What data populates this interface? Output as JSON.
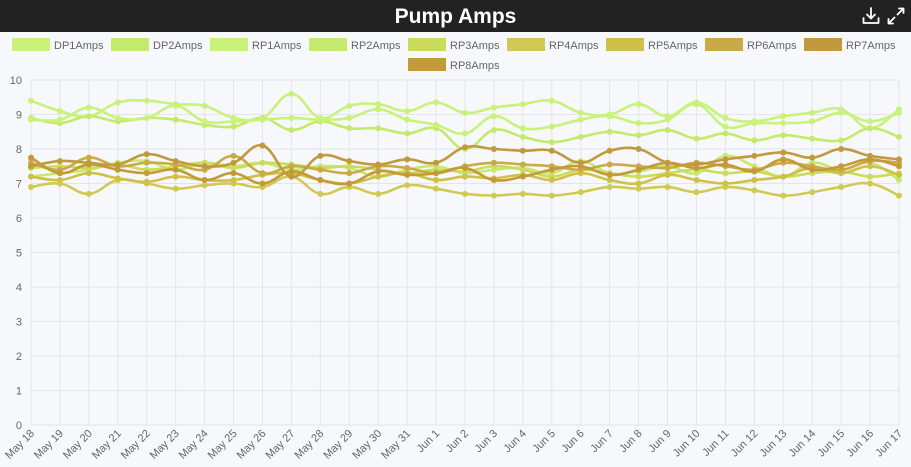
{
  "header": {
    "title": "Pump Amps",
    "download_icon": "download-icon",
    "expand_icon": "expand-icon"
  },
  "chart_data": {
    "type": "line",
    "title": "Pump Amps",
    "xlabel": "",
    "ylabel": "",
    "ylim": [
      0,
      10
    ],
    "yticks": [
      "0",
      "1",
      "2",
      "3",
      "4",
      "5",
      "6",
      "7",
      "8",
      "9",
      "10"
    ],
    "grid": true,
    "legend": "top",
    "categories": [
      "May 18",
      "May 19",
      "May 20",
      "May 21",
      "May 22",
      "May 23",
      "May 24",
      "May 25",
      "May 26",
      "May 27",
      "May 28",
      "May 29",
      "May 30",
      "May 31",
      "Jun 1",
      "Jun 2",
      "Jun 3",
      "Jun 4",
      "Jun 5",
      "Jun 6",
      "Jun 7",
      "Jun 8",
      "Jun 9",
      "Jun 10",
      "Jun 11",
      "Jun 12",
      "Jun 13",
      "Jun 14",
      "Jun 15",
      "Jun 16",
      "Jun 17"
    ],
    "series": [
      {
        "name": "DP1Amps",
        "color": "#c8f27a",
        "values": [
          9.4,
          9.1,
          8.95,
          9.35,
          9.4,
          9.3,
          9.25,
          8.9,
          8.9,
          9.6,
          8.9,
          9.25,
          9.3,
          9.1,
          9.35,
          9.05,
          9.2,
          9.3,
          9.4,
          9.05,
          9.0,
          9.3,
          8.95,
          9.35,
          8.9,
          8.8,
          8.95,
          9.05,
          9.15,
          8.6,
          9.15
        ]
      },
      {
        "name": "DP2Amps",
        "color": "#c4ea6c",
        "values": [
          8.9,
          8.75,
          8.95,
          8.8,
          8.9,
          8.85,
          8.7,
          8.65,
          8.9,
          8.55,
          8.8,
          8.6,
          8.6,
          8.45,
          8.6,
          8.0,
          8.55,
          8.35,
          8.2,
          8.35,
          8.5,
          8.4,
          8.55,
          8.3,
          8.45,
          8.25,
          8.4,
          8.3,
          8.25,
          8.6,
          8.35
        ]
      },
      {
        "name": "RP1Amps",
        "color": "#c8f27a",
        "values": [
          8.85,
          8.85,
          9.2,
          8.9,
          8.9,
          9.25,
          8.8,
          8.8,
          8.85,
          8.9,
          8.85,
          8.9,
          9.15,
          8.85,
          8.7,
          8.45,
          8.95,
          8.6,
          8.65,
          8.85,
          8.95,
          8.75,
          8.85,
          9.3,
          8.65,
          8.75,
          8.75,
          8.8,
          9.05,
          8.8,
          9.05
        ]
      },
      {
        "name": "RP2Amps",
        "color": "#c6ea70",
        "values": [
          7.2,
          7.3,
          7.4,
          7.6,
          7.65,
          7.4,
          7.6,
          7.5,
          7.6,
          7.4,
          7.5,
          7.45,
          7.2,
          7.4,
          7.5,
          7.3,
          7.4,
          7.45,
          7.3,
          7.65,
          7.3,
          7.35,
          7.5,
          7.3,
          7.8,
          7.5,
          7.2,
          7.6,
          7.4,
          7.6,
          7.1
        ]
      },
      {
        "name": "RP3Amps",
        "color": "#cadc5a",
        "values": [
          7.45,
          7.5,
          7.45,
          7.55,
          7.4,
          7.5,
          7.6,
          7.45,
          7.6,
          7.55,
          7.45,
          7.5,
          7.4,
          7.3,
          7.4,
          7.35,
          7.5,
          7.4,
          7.2,
          7.4,
          7.3,
          7.2,
          7.3,
          7.4,
          7.3,
          7.35,
          7.2,
          7.3,
          7.35,
          7.2,
          7.3
        ]
      },
      {
        "name": "RP4Amps",
        "color": "#d0ca55",
        "values": [
          6.9,
          7.0,
          6.7,
          7.1,
          7.0,
          6.85,
          6.95,
          7.0,
          6.9,
          7.2,
          6.7,
          6.9,
          6.7,
          6.95,
          6.85,
          6.7,
          6.65,
          6.7,
          6.65,
          6.75,
          6.9,
          6.85,
          6.9,
          6.75,
          6.9,
          6.8,
          6.65,
          6.75,
          6.9,
          7.0,
          6.65
        ]
      },
      {
        "name": "RP5Amps",
        "color": "#cfc048",
        "values": [
          7.2,
          7.1,
          7.3,
          7.15,
          7.05,
          7.2,
          7.1,
          7.1,
          7.25,
          7.3,
          7.1,
          7.0,
          7.2,
          7.3,
          7.1,
          7.2,
          7.15,
          7.25,
          7.1,
          7.3,
          7.1,
          7.0,
          7.25,
          7.1,
          7.0,
          7.1,
          7.2,
          7.45,
          7.3,
          7.5,
          7.25
        ]
      },
      {
        "name": "RP6Amps",
        "color": "#c9aa45",
        "values": [
          7.6,
          7.4,
          7.75,
          7.5,
          7.6,
          7.55,
          7.4,
          7.8,
          7.3,
          7.5,
          7.4,
          7.3,
          7.5,
          7.45,
          7.3,
          7.5,
          7.6,
          7.55,
          7.5,
          7.4,
          7.55,
          7.5,
          7.45,
          7.6,
          7.5,
          7.4,
          7.6,
          7.5,
          7.4,
          7.65,
          7.6
        ]
      },
      {
        "name": "RP7Amps",
        "color": "#c09a3c",
        "values": [
          7.5,
          7.65,
          7.6,
          7.55,
          7.85,
          7.65,
          7.5,
          7.6,
          8.1,
          7.2,
          7.8,
          7.65,
          7.55,
          7.7,
          7.6,
          8.05,
          8.0,
          7.95,
          7.95,
          7.6,
          7.95,
          8.0,
          7.6,
          7.55,
          7.7,
          7.8,
          7.9,
          7.75,
          8.0,
          7.8,
          7.7
        ]
      },
      {
        "name": "RP8Amps",
        "color": "#c49a38",
        "values": [
          7.75,
          7.3,
          7.55,
          7.4,
          7.3,
          7.4,
          7.1,
          7.3,
          7.0,
          7.35,
          7.1,
          7.0,
          7.35,
          7.25,
          7.3,
          7.45,
          7.1,
          7.2,
          7.4,
          7.5,
          7.25,
          7.4,
          7.6,
          7.45,
          7.55,
          7.35,
          7.7,
          7.4,
          7.5,
          7.7,
          7.5
        ]
      }
    ]
  }
}
